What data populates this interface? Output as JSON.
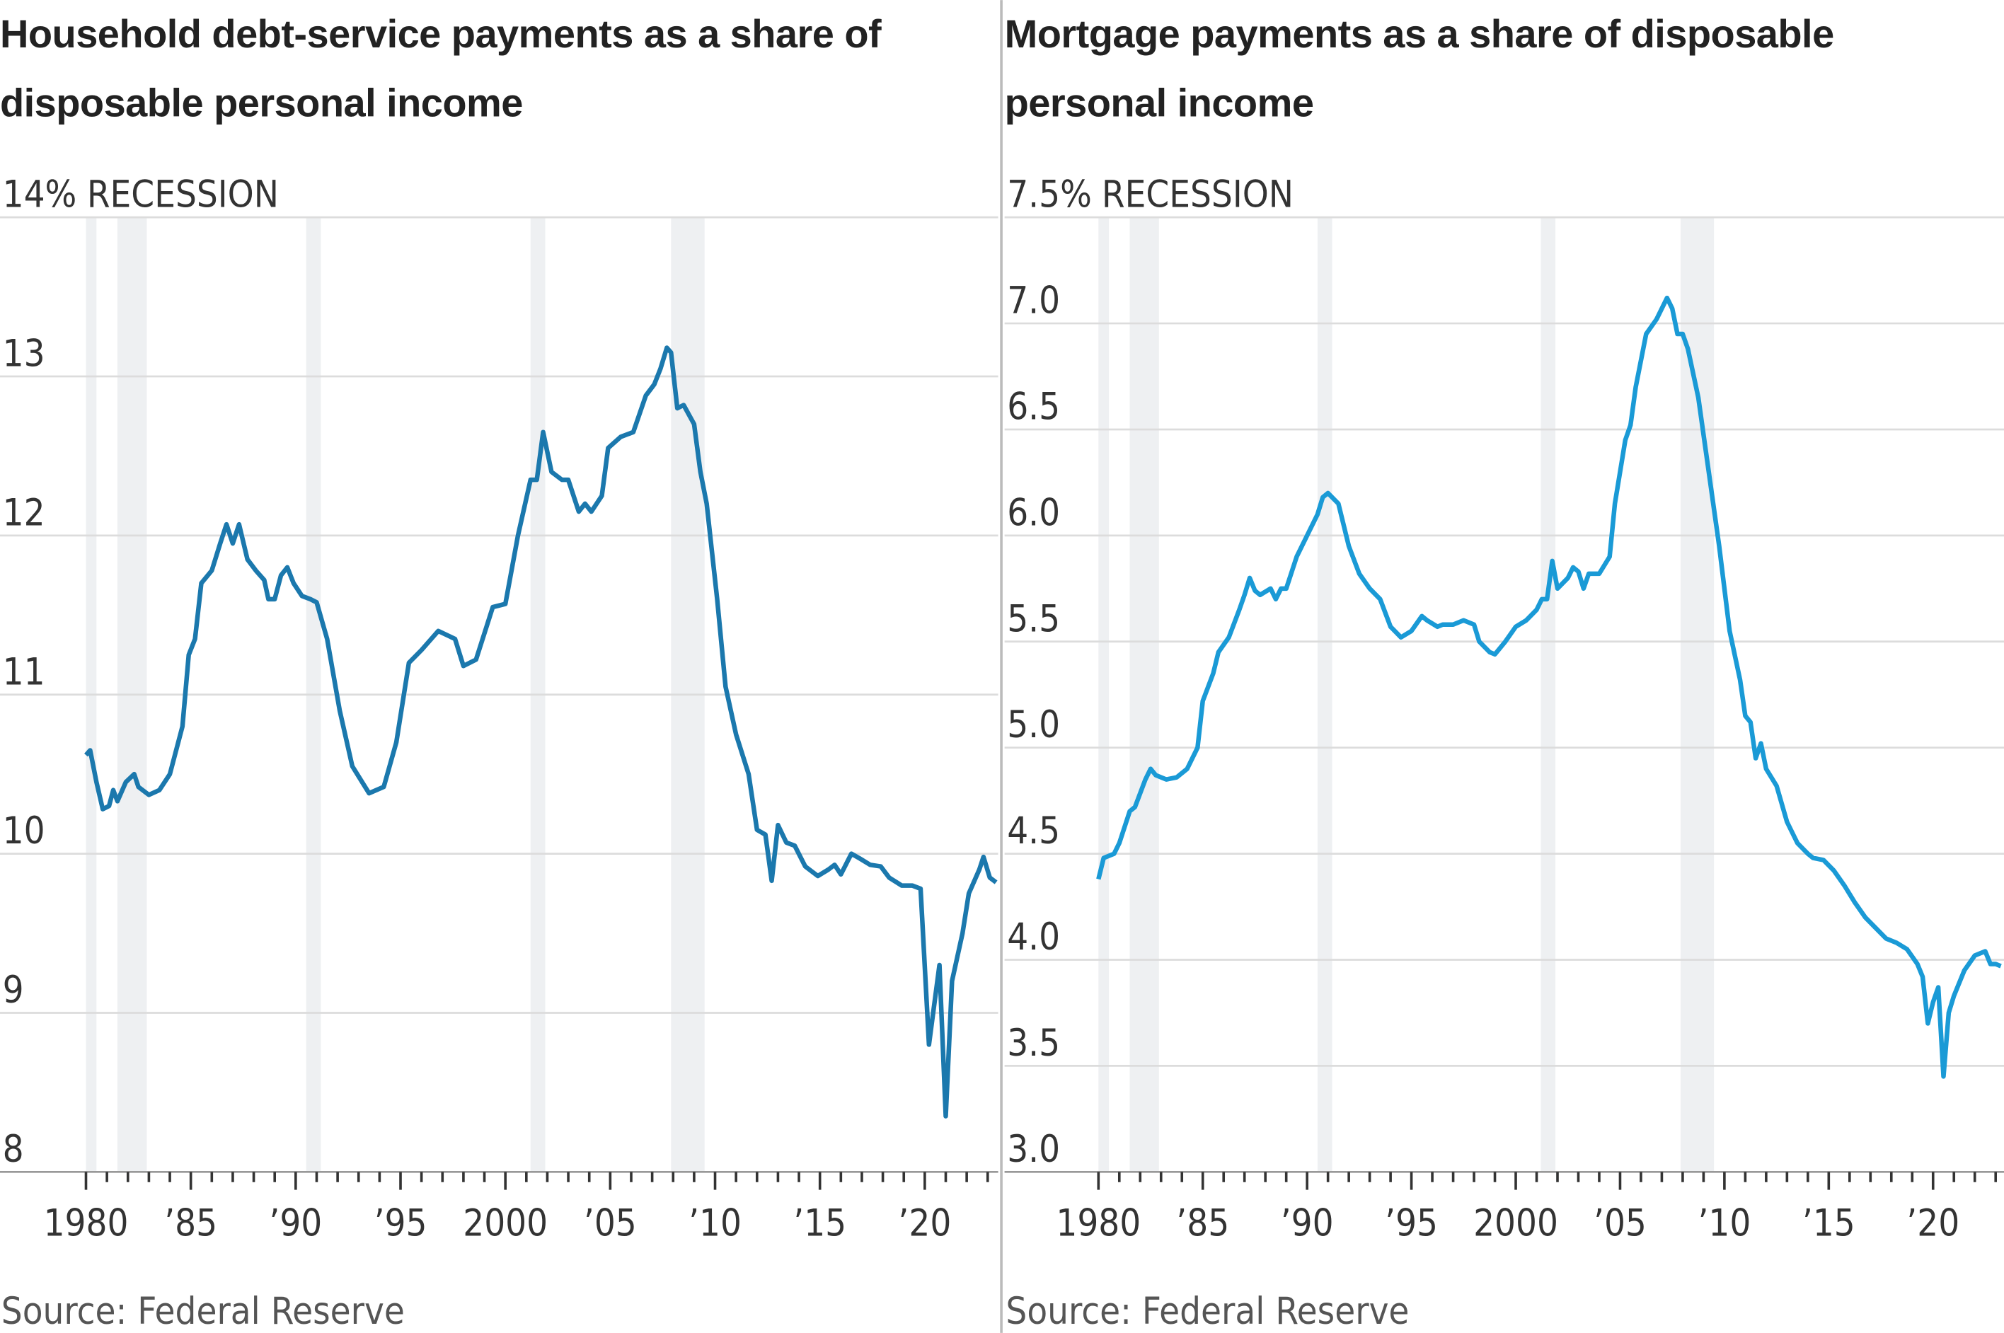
{
  "chart_data": [
    {
      "type": "line",
      "title": "Household debt-service payments as a share of disposable personal income",
      "recession_label": "RECESSION",
      "source": "Source: Federal Reserve",
      "color": "#1b78ad",
      "recessions": [
        [
          1980.0,
          1980.5
        ],
        [
          1981.5,
          1982.9
        ],
        [
          1990.5,
          1991.2
        ],
        [
          2001.2,
          2001.9
        ],
        [
          2007.9,
          2009.5
        ]
      ],
      "x": [
        1980.0,
        1980.2,
        1980.5,
        1980.8,
        1981.1,
        1981.3,
        1981.5,
        1981.9,
        1982.3,
        1982.5,
        1983.0,
        1983.5,
        1984.0,
        1984.6,
        1984.9,
        1985.2,
        1985.5,
        1986.0,
        1986.4,
        1986.7,
        1987.0,
        1987.3,
        1987.7,
        1988.1,
        1988.5,
        1988.7,
        1989.0,
        1989.3,
        1989.6,
        1989.9,
        1990.3,
        1990.7,
        1991.0,
        1991.5,
        1992.1,
        1992.7,
        1993.5,
        1994.2,
        1994.8,
        1995.4,
        1996.0,
        1996.8,
        1997.6,
        1998.0,
        1998.6,
        1999.4,
        2000.0,
        2000.6,
        2001.2,
        2001.5,
        2001.8,
        2002.2,
        2002.7,
        2003.0,
        2003.5,
        2003.8,
        2004.1,
        2004.6,
        2004.9,
        2005.5,
        2006.1,
        2006.7,
        2007.1,
        2007.4,
        2007.7,
        2007.9,
        2008.2,
        2008.5,
        2009.0,
        2009.3,
        2009.6,
        2010.1,
        2010.5,
        2011.0,
        2011.6,
        2012.0,
        2012.4,
        2012.7,
        2013.0,
        2013.4,
        2013.8,
        2014.3,
        2014.9,
        2015.4,
        2015.7,
        2016.0,
        2016.5,
        2016.9,
        2017.4,
        2017.9,
        2018.3,
        2018.9,
        2019.4,
        2019.8,
        2020.2,
        2020.7,
        2021.0,
        2021.3,
        2021.8,
        2022.1,
        2022.6,
        2022.8,
        2023.1,
        2023.4
      ],
      "values": [
        10.62,
        10.65,
        10.45,
        10.28,
        10.3,
        10.4,
        10.33,
        10.45,
        10.5,
        10.42,
        10.37,
        10.4,
        10.5,
        10.8,
        11.25,
        11.35,
        11.7,
        11.78,
        11.95,
        12.07,
        11.95,
        12.07,
        11.85,
        11.78,
        11.72,
        11.6,
        11.6,
        11.75,
        11.8,
        11.7,
        11.62,
        11.6,
        11.58,
        11.35,
        10.9,
        10.55,
        10.38,
        10.42,
        10.7,
        11.2,
        11.28,
        11.4,
        11.35,
        11.18,
        11.22,
        11.55,
        11.57,
        12.0,
        12.35,
        12.35,
        12.65,
        12.4,
        12.35,
        12.35,
        12.15,
        12.2,
        12.15,
        12.25,
        12.55,
        12.62,
        12.65,
        12.88,
        12.95,
        13.05,
        13.18,
        13.15,
        12.8,
        12.82,
        12.7,
        12.4,
        12.2,
        11.6,
        11.05,
        10.75,
        10.5,
        10.15,
        10.12,
        9.83,
        10.18,
        10.07,
        10.05,
        9.92,
        9.86,
        9.9,
        9.93,
        9.87,
        10.0,
        9.97,
        9.93,
        9.92,
        9.85,
        9.8,
        9.8,
        9.78,
        8.8,
        9.3,
        8.35,
        9.2,
        9.5,
        9.75,
        9.9,
        9.98,
        9.85,
        9.82
      ],
      "xlim": [
        1975.9,
        2023.5
      ],
      "xticks": [
        1980,
        {
          "value": 1985,
          "label": "’85"
        },
        {
          "value": 1990,
          "label": "’90"
        },
        {
          "value": 1995,
          "label": "’95"
        },
        2000,
        {
          "value": 2005,
          "label": "’05"
        },
        {
          "value": 2010,
          "label": "’10"
        },
        {
          "value": 2015,
          "label": "’15"
        },
        {
          "value": 2020,
          "label": "’20"
        }
      ],
      "minor_xticks": [
        1981,
        1982,
        1983,
        1984,
        1986,
        1987,
        1988,
        1989,
        1991,
        1992,
        1993,
        1994,
        1996,
        1997,
        1998,
        1999,
        2001,
        2002,
        2003,
        2004,
        2006,
        2007,
        2008,
        2009,
        2011,
        2012,
        2013,
        2014,
        2016,
        2017,
        2018,
        2019,
        2021,
        2022,
        2023
      ],
      "ylim": [
        8,
        14
      ],
      "yticks": [
        8,
        9,
        10,
        11,
        12,
        13,
        {
          "value": 14,
          "label": "14%"
        }
      ],
      "grid": true
    },
    {
      "type": "line",
      "title": "Mortgage payments as a share of disposable personal income",
      "recession_label": "RECESSION",
      "source": "Source: Federal Reserve",
      "color": "#1a9ad6",
      "recessions": [
        [
          1980.0,
          1980.5
        ],
        [
          1981.5,
          1982.9
        ],
        [
          1990.5,
          1991.2
        ],
        [
          2001.2,
          2001.9
        ],
        [
          2007.9,
          2009.5
        ]
      ],
      "x": [
        1980.0,
        1980.25,
        1980.75,
        1981.0,
        1981.5,
        1981.75,
        1982.25,
        1982.5,
        1982.75,
        1983.25,
        1983.75,
        1984.25,
        1984.75,
        1985.0,
        1985.5,
        1985.75,
        1986.25,
        1986.75,
        1987.0,
        1987.25,
        1987.5,
        1987.75,
        1988.25,
        1988.5,
        1988.75,
        1989.0,
        1989.5,
        1990.0,
        1990.5,
        1990.75,
        1991.0,
        1991.5,
        1992.0,
        1992.5,
        1993.0,
        1993.5,
        1994.0,
        1994.5,
        1995.0,
        1995.5,
        1995.75,
        1996.25,
        1996.5,
        1997.0,
        1997.5,
        1998.0,
        1998.25,
        1998.75,
        1999.0,
        1999.5,
        2000.0,
        2000.5,
        2001.0,
        2001.25,
        2001.5,
        2001.75,
        2002.0,
        2002.5,
        2002.75,
        2003.0,
        2003.25,
        2003.5,
        2004.0,
        2004.5,
        2004.75,
        2005.25,
        2005.5,
        2005.75,
        2006.25,
        2006.75,
        2007.25,
        2007.5,
        2007.75,
        2008.0,
        2008.25,
        2008.75,
        2009.25,
        2009.75,
        2010.25,
        2010.75,
        2011.0,
        2011.25,
        2011.5,
        2011.75,
        2012.0,
        2012.5,
        2013.0,
        2013.5,
        2014.0,
        2014.25,
        2014.75,
        2015.25,
        2015.75,
        2016.25,
        2016.75,
        2017.25,
        2017.75,
        2018.25,
        2018.75,
        2019.25,
        2019.5,
        2019.75,
        2020.0,
        2020.25,
        2020.5,
        2020.75,
        2021.0,
        2021.5,
        2022.0,
        2022.5,
        2022.75,
        2023.0,
        2023.25
      ],
      "values": [
        4.38,
        4.48,
        4.5,
        4.55,
        4.7,
        4.72,
        4.85,
        4.9,
        4.87,
        4.85,
        4.86,
        4.9,
        5.0,
        5.22,
        5.35,
        5.45,
        5.52,
        5.65,
        5.72,
        5.8,
        5.74,
        5.72,
        5.75,
        5.7,
        5.75,
        5.75,
        5.9,
        6.0,
        6.1,
        6.18,
        6.2,
        6.15,
        5.95,
        5.82,
        5.75,
        5.7,
        5.57,
        5.52,
        5.55,
        5.62,
        5.6,
        5.57,
        5.58,
        5.58,
        5.6,
        5.58,
        5.5,
        5.45,
        5.44,
        5.5,
        5.57,
        5.6,
        5.65,
        5.7,
        5.7,
        5.88,
        5.75,
        5.8,
        5.85,
        5.83,
        5.75,
        5.82,
        5.82,
        5.9,
        6.15,
        6.45,
        6.52,
        6.7,
        6.95,
        7.02,
        7.12,
        7.07,
        6.95,
        6.95,
        6.88,
        6.65,
        6.3,
        5.95,
        5.55,
        5.32,
        5.15,
        5.12,
        4.95,
        5.02,
        4.9,
        4.82,
        4.65,
        4.55,
        4.5,
        4.48,
        4.47,
        4.42,
        4.35,
        4.27,
        4.2,
        4.15,
        4.1,
        4.08,
        4.05,
        3.98,
        3.92,
        3.7,
        3.8,
        3.87,
        3.45,
        3.75,
        3.83,
        3.95,
        4.02,
        4.04,
        3.98,
        3.98,
        3.97
      ],
      "xlim": [
        1975.5,
        2023.4
      ],
      "xticks": [
        1980,
        {
          "value": 1985,
          "label": "’85"
        },
        {
          "value": 1990,
          "label": "’90"
        },
        {
          "value": 1995,
          "label": "’95"
        },
        2000,
        {
          "value": 2005,
          "label": "’05"
        },
        {
          "value": 2010,
          "label": "’10"
        },
        {
          "value": 2015,
          "label": "’15"
        },
        {
          "value": 2020,
          "label": "’20"
        }
      ],
      "minor_xticks": [
        1981,
        1982,
        1983,
        1984,
        1986,
        1987,
        1988,
        1989,
        1991,
        1992,
        1993,
        1994,
        1996,
        1997,
        1998,
        1999,
        2001,
        2002,
        2003,
        2004,
        2006,
        2007,
        2008,
        2009,
        2011,
        2012,
        2013,
        2014,
        2016,
        2017,
        2018,
        2019,
        2021,
        2022,
        2023
      ],
      "ylim": [
        3,
        7.5
      ],
      "yticks": [
        {
          "value": 3,
          "label": "3.0"
        },
        3.5,
        {
          "value": 4,
          "label": "4.0"
        },
        4.5,
        {
          "value": 5,
          "label": "5.0"
        },
        5.5,
        {
          "value": 6,
          "label": "6.0"
        },
        6.5,
        {
          "value": 7,
          "label": "7.0"
        },
        {
          "value": 7.5,
          "label": "7.5%"
        }
      ],
      "grid": true
    }
  ]
}
